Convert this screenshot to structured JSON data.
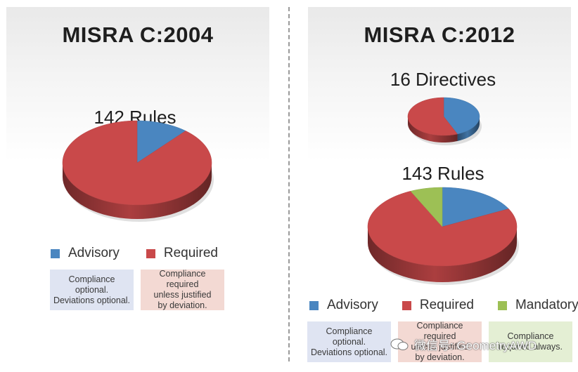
{
  "left": {
    "title": "MISRA C:2004",
    "pie_label": "142 Rules",
    "legend": [
      {
        "label": "Advisory",
        "color": "#4a86c0"
      },
      {
        "label": "Required",
        "color": "#c9494a"
      }
    ],
    "notes": [
      {
        "text": "Compliance optional.\nDeviations optional.",
        "bg": "#dfe4f2"
      },
      {
        "text": "Compliance required\nunless justified\nby deviation.",
        "bg": "#f3d9d3"
      }
    ]
  },
  "right": {
    "title": "MISRA C:2012",
    "directives_label": "16 Directives",
    "rules_label": "143 Rules",
    "legend": [
      {
        "label": "Advisory",
        "color": "#4a86c0"
      },
      {
        "label": "Required",
        "color": "#c9494a"
      },
      {
        "label": "Mandatory",
        "color": "#9dc055"
      }
    ],
    "notes": [
      {
        "text": "Compliance optional.\nDeviations optional.",
        "bg": "#dfe4f2"
      },
      {
        "text": "Compliance required\nunless justified\nby deviation.",
        "bg": "#f3d9d3"
      },
      {
        "text": "Compliance\nrequired always.",
        "bg": "#e4efd4"
      }
    ]
  },
  "watermark": "微信号: GeometryAWD",
  "chart_data": [
    {
      "type": "pie",
      "title": "142 Rules",
      "slices": [
        {
          "name": "Advisory",
          "value": 16,
          "color": "#4a86c0"
        },
        {
          "name": "Required",
          "value": 126,
          "color": "#c9494a"
        }
      ]
    },
    {
      "type": "pie",
      "title": "16 Directives",
      "slices": [
        {
          "name": "Advisory",
          "value": 7,
          "color": "#4a86c0"
        },
        {
          "name": "Required",
          "value": 9,
          "color": "#c9494a"
        }
      ]
    },
    {
      "type": "pie",
      "title": "143 Rules",
      "slices": [
        {
          "name": "Advisory",
          "value": 25,
          "color": "#4a86c0"
        },
        {
          "name": "Required",
          "value": 108,
          "color": "#c9494a"
        },
        {
          "name": "Mandatory",
          "value": 10,
          "color": "#9dc055"
        }
      ]
    }
  ]
}
